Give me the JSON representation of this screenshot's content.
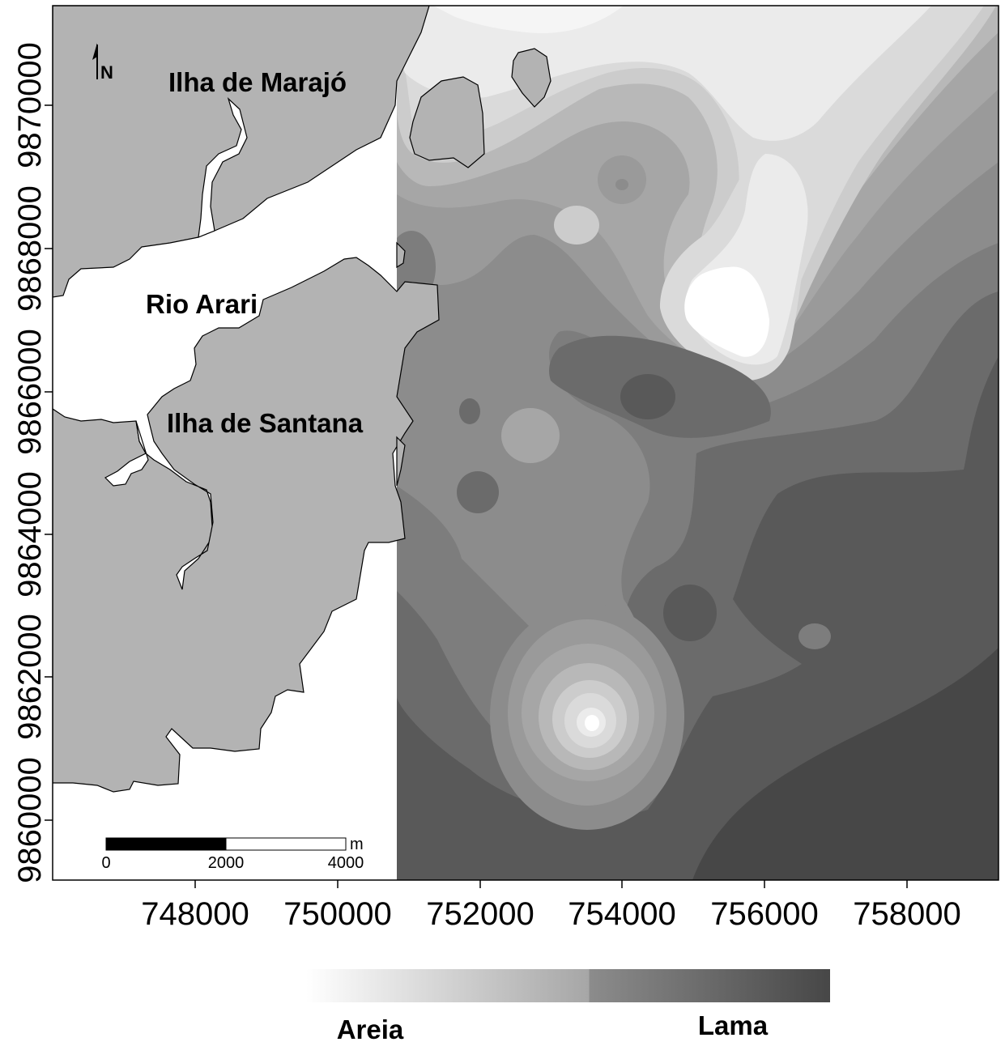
{
  "map": {
    "x_axis": {
      "ticks": [
        "748000",
        "750000",
        "752000",
        "754000",
        "756000",
        "758000"
      ]
    },
    "y_axis": {
      "ticks": [
        "9860000",
        "9862000",
        "9864000",
        "9866000",
        "9868000",
        "9870000"
      ]
    },
    "labels": {
      "marajo": "Ilha de Marajó",
      "arari": "Rio Arari",
      "santana": "Ilha de Santana"
    },
    "north_arrow": "N",
    "scale_bar": {
      "unit": "m",
      "ticks": [
        "0",
        "2000",
        "4000"
      ]
    },
    "legend": {
      "left": "Areia",
      "right": "Lama",
      "colors": [
        "#ffffff",
        "#a6a6a6",
        "#8c8c8c",
        "#474747"
      ]
    },
    "colors": {
      "land": "#b3b3b3",
      "water": "#ffffff",
      "deepest": "#474747",
      "lightest": "#ffffff"
    }
  }
}
